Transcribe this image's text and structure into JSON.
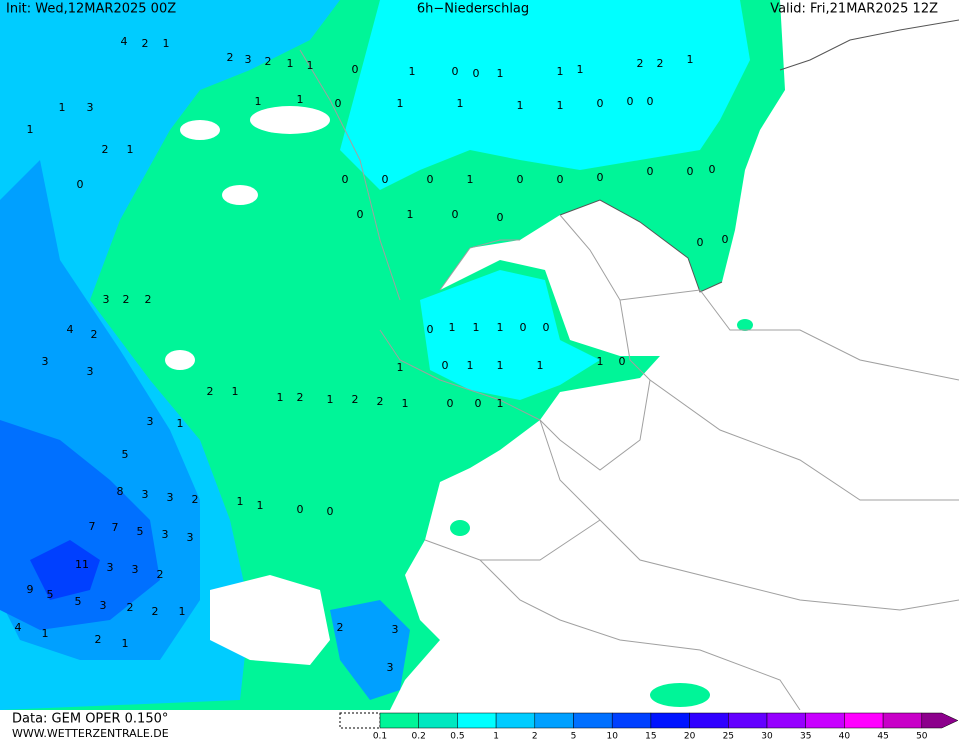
{
  "header": {
    "init": "Init: Wed,12MAR2025 00Z",
    "title": "6h−Niederschlag",
    "valid": "Valid: Fri,21MAR2025 12Z"
  },
  "footer": {
    "data": "Data: GEM OPER 0.150°",
    "site": "WWW.WETTERZENTRALE.DE"
  },
  "legend": [
    {
      "value": 0.1,
      "color": "#00f598"
    },
    {
      "value": 0.2,
      "color": "#00e8c0"
    },
    {
      "value": 0.5,
      "color": "#00ffff"
    },
    {
      "value": 1,
      "color": "#00ccff"
    },
    {
      "value": 2,
      "color": "#00a0ff"
    },
    {
      "value": 5,
      "color": "#0070ff"
    },
    {
      "value": 10,
      "color": "#0040ff"
    },
    {
      "value": 15,
      "color": "#0014ff"
    },
    {
      "value": 20,
      "color": "#3000ff"
    },
    {
      "value": 25,
      "color": "#6400ff"
    },
    {
      "value": 30,
      "color": "#9600ff"
    },
    {
      "value": 35,
      "color": "#c800ff"
    },
    {
      "value": 40,
      "color": "#ff00ff"
    },
    {
      "value": 45,
      "color": "#c800c8"
    },
    {
      "value": 50,
      "color": "#8c008c"
    }
  ],
  "map_labels": [
    4,
    2,
    1,
    2,
    3,
    2,
    1,
    1,
    0,
    1,
    0,
    0,
    1,
    1,
    1,
    2,
    2,
    1,
    0,
    0,
    0,
    1,
    1,
    1,
    1,
    0,
    1,
    1,
    1,
    3,
    1,
    2,
    1,
    0,
    0,
    0,
    0,
    1,
    0,
    0,
    0,
    0,
    0,
    0,
    0,
    1,
    0,
    0,
    0,
    0,
    3,
    2,
    2,
    4,
    2,
    3,
    3,
    0,
    1,
    1,
    1,
    0,
    0,
    1,
    0,
    1,
    1,
    1,
    1,
    0,
    2,
    1,
    1,
    2,
    1,
    2,
    2,
    1,
    0,
    0,
    1,
    3,
    1,
    5,
    8,
    3,
    3,
    2,
    1,
    1,
    0,
    0,
    7,
    7,
    5,
    3,
    3,
    11,
    3,
    3,
    2,
    9,
    5,
    5,
    3,
    2,
    2,
    1,
    2,
    3,
    3,
    4,
    1,
    2,
    1
  ]
}
